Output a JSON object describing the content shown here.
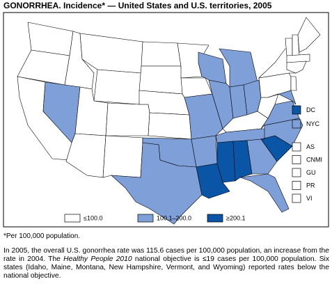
{
  "title": "GONORRHEA. Incidence* — United States and U.S. territories, 2005",
  "legend": [
    {
      "label": "≤100.0",
      "color": "#ffffff"
    },
    {
      "label": "100.1–200.0",
      "color": "#7f9fd8"
    },
    {
      "label": "≥200.1",
      "color": "#0a55a6"
    }
  ],
  "state_classes": [
    0,
    0,
    0,
    1,
    0,
    0,
    0,
    0,
    0,
    0,
    0,
    0,
    0,
    0,
    0,
    1,
    1,
    0,
    0,
    1,
    1,
    2,
    1,
    1,
    1,
    1,
    1,
    0,
    1,
    2,
    2,
    1,
    1,
    2,
    1,
    1,
    0,
    0,
    0,
    1,
    0,
    0,
    0,
    0,
    0,
    0
  ],
  "territories": [
    {
      "label": "DC",
      "class": 2
    },
    {
      "label": "NYC",
      "class": 1
    },
    {
      "label": "AS",
      "class": 0
    },
    {
      "label": "CNMI",
      "class": 0
    },
    {
      "label": "GU",
      "class": 0
    },
    {
      "label": "PR",
      "class": 0
    },
    {
      "label": "VI",
      "class": 0
    }
  ],
  "footnote": "*Per 100,000 population.",
  "paragraph": [
    "In 2005, the overall U.S. gonorrhea rate was 115.6 cases per 100,000 population, an increase from the rate in 2004. The ",
    "Healthy People 2010",
    " national objective is ≤19 cases per 100,000 population. Six states (Idaho, Maine, Montana, New Hampshire, Vermont, and Wyoming) reported rates below the national objective."
  ]
}
